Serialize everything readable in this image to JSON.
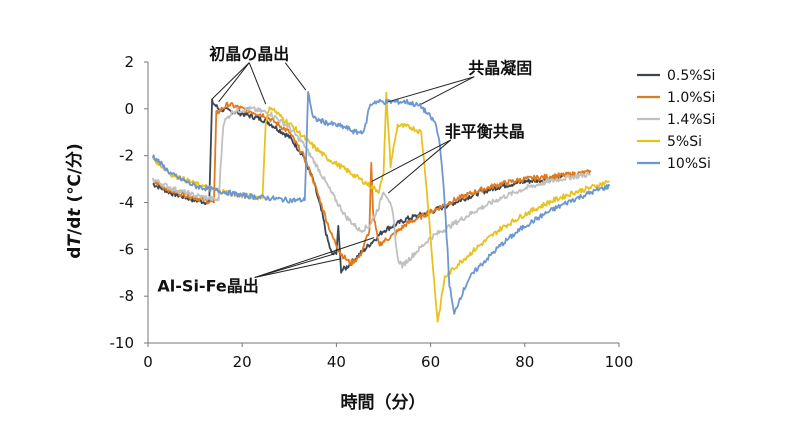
{
  "chart_data": {
    "type": "line",
    "title": "",
    "xlabel": "時間（分）",
    "ylabel": "dT/dt (℃/分)",
    "ylabel_parts": [
      "d",
      "T",
      "/d",
      "t",
      " (℃/分)"
    ],
    "xlim": [
      0,
      100
    ],
    "ylim": [
      -10,
      2
    ],
    "xticks": [
      0,
      20,
      40,
      60,
      80,
      100
    ],
    "yticks": [
      -10,
      -8,
      -6,
      -4,
      -2,
      0,
      2
    ],
    "grid": false,
    "legend_position": "right",
    "annotations": [
      {
        "text": "初晶の晶出",
        "x": 13,
        "y": 2.1,
        "targets": [
          [
            13.5,
            0.4
          ],
          [
            15.0,
            0.3
          ],
          [
            25.0,
            0.2
          ],
          [
            33.5,
            0.8
          ]
        ]
      },
      {
        "text": "共晶凝固",
        "x": 68,
        "y": 1.5,
        "targets": [
          [
            51,
            0.3
          ],
          [
            58,
            0.2
          ]
        ]
      },
      {
        "text": "非平衡共晶",
        "x": 63,
        "y": -1.2,
        "targets": [
          [
            47.5,
            -3.1
          ],
          [
            51,
            -3.6
          ]
        ]
      },
      {
        "text": "Al-Si-Fe晶出",
        "x": 2,
        "y": -7.8,
        "targets": [
          [
            39.5,
            -6.2
          ],
          [
            41.0,
            -6.4
          ],
          [
            48.0,
            -5.5
          ]
        ]
      }
    ],
    "series": [
      {
        "name": "0.5%Si",
        "color": "#3a4555",
        "points": [
          [
            1,
            -3.2
          ],
          [
            5,
            -3.6
          ],
          [
            10,
            -3.9
          ],
          [
            13,
            -4.0
          ],
          [
            13.6,
            0.3
          ],
          [
            15,
            0.0
          ],
          [
            20,
            -0.2
          ],
          [
            25,
            -0.5
          ],
          [
            30,
            -1.2
          ],
          [
            33,
            -2.0
          ],
          [
            35,
            -3.0
          ],
          [
            37,
            -4.5
          ],
          [
            38,
            -5.5
          ],
          [
            39,
            -6.2
          ],
          [
            40,
            -6.2
          ],
          [
            40.4,
            -5.0
          ],
          [
            41,
            -6.9
          ],
          [
            42,
            -6.8
          ],
          [
            44,
            -6.4
          ],
          [
            47,
            -5.8
          ],
          [
            50,
            -5.2
          ],
          [
            55,
            -4.7
          ],
          [
            60,
            -4.4
          ],
          [
            65,
            -4.0
          ],
          [
            70,
            -3.6
          ],
          [
            75,
            -3.3
          ],
          [
            80,
            -3.1
          ],
          [
            85,
            -3.0
          ],
          [
            88,
            -2.9
          ]
        ]
      },
      {
        "name": "1.0%Si",
        "color": "#e07a1c",
        "points": [
          [
            1,
            -3.1
          ],
          [
            5,
            -3.5
          ],
          [
            10,
            -3.8
          ],
          [
            14,
            -4.0
          ],
          [
            14.5,
            -0.2
          ],
          [
            17,
            0.2
          ],
          [
            20,
            0.0
          ],
          [
            25,
            -0.3
          ],
          [
            30,
            -1.0
          ],
          [
            33,
            -2.0
          ],
          [
            35,
            -3.0
          ],
          [
            37,
            -4.2
          ],
          [
            39,
            -5.4
          ],
          [
            41,
            -6.2
          ],
          [
            43,
            -6.6
          ],
          [
            45,
            -6.3
          ],
          [
            47,
            -5.2
          ],
          [
            47.4,
            -2.3
          ],
          [
            47.8,
            -4.5
          ],
          [
            49,
            -5.8
          ],
          [
            52,
            -5.4
          ],
          [
            55,
            -4.9
          ],
          [
            60,
            -4.4
          ],
          [
            65,
            -3.9
          ],
          [
            70,
            -3.5
          ],
          [
            75,
            -3.2
          ],
          [
            80,
            -3.0
          ],
          [
            85,
            -2.9
          ],
          [
            90,
            -2.8
          ],
          [
            94,
            -2.7
          ]
        ]
      },
      {
        "name": "1.4%Si",
        "color": "#c0c0c0",
        "points": [
          [
            1,
            -3.0
          ],
          [
            5,
            -3.4
          ],
          [
            10,
            -3.7
          ],
          [
            15,
            -3.9
          ],
          [
            16,
            -0.6
          ],
          [
            18,
            -0.1
          ],
          [
            22,
            0.0
          ],
          [
            26,
            -0.2
          ],
          [
            30,
            -0.8
          ],
          [
            33,
            -1.5
          ],
          [
            36,
            -2.5
          ],
          [
            39,
            -3.6
          ],
          [
            42,
            -4.6
          ],
          [
            45,
            -5.2
          ],
          [
            47,
            -5.0
          ],
          [
            49,
            -4.2
          ],
          [
            50,
            -3.5
          ],
          [
            51,
            -3.8
          ],
          [
            52,
            -4.5
          ],
          [
            53,
            -6.4
          ],
          [
            54,
            -6.7
          ],
          [
            56,
            -6.3
          ],
          [
            60,
            -5.5
          ],
          [
            65,
            -4.9
          ],
          [
            70,
            -4.3
          ],
          [
            75,
            -3.8
          ],
          [
            80,
            -3.4
          ],
          [
            85,
            -3.1
          ],
          [
            90,
            -2.9
          ],
          [
            94,
            -2.8
          ]
        ]
      },
      {
        "name": "5%Si",
        "color": "#e8c21e",
        "points": [
          [
            1,
            -2.1
          ],
          [
            5,
            -2.8
          ],
          [
            10,
            -3.2
          ],
          [
            15,
            -3.5
          ],
          [
            20,
            -3.7
          ],
          [
            24.3,
            -3.8
          ],
          [
            25,
            -0.5
          ],
          [
            26,
            0.1
          ],
          [
            28,
            -0.3
          ],
          [
            31,
            -0.8
          ],
          [
            34,
            -1.4
          ],
          [
            38,
            -2.1
          ],
          [
            42,
            -2.6
          ],
          [
            45,
            -3.0
          ],
          [
            48,
            -3.4
          ],
          [
            49,
            -3.5
          ],
          [
            50,
            -2.8
          ],
          [
            50.6,
            0.6
          ],
          [
            51.5,
            -2.4
          ],
          [
            53,
            -0.7
          ],
          [
            56,
            -0.8
          ],
          [
            58,
            -1.0
          ],
          [
            59,
            -3.0
          ],
          [
            60,
            -5.5
          ],
          [
            61,
            -8.0
          ],
          [
            61.5,
            -9.1
          ],
          [
            62,
            -8.5
          ],
          [
            63,
            -7.2
          ],
          [
            66,
            -6.6
          ],
          [
            70,
            -5.9
          ],
          [
            75,
            -5.1
          ],
          [
            80,
            -4.5
          ],
          [
            85,
            -4.0
          ],
          [
            90,
            -3.6
          ],
          [
            95,
            -3.3
          ],
          [
            98,
            -3.1
          ]
        ]
      },
      {
        "name": "10%Si",
        "color": "#6f97cf",
        "points": [
          [
            1,
            -2.0
          ],
          [
            5,
            -2.8
          ],
          [
            10,
            -3.3
          ],
          [
            15,
            -3.5
          ],
          [
            20,
            -3.7
          ],
          [
            25,
            -3.8
          ],
          [
            30,
            -3.9
          ],
          [
            33.3,
            -3.9
          ],
          [
            34,
            0.8
          ],
          [
            35,
            -0.4
          ],
          [
            38,
            -0.6
          ],
          [
            40,
            -0.7
          ],
          [
            42,
            -0.8
          ],
          [
            44,
            -1.0
          ],
          [
            45,
            -1.0
          ],
          [
            46,
            -0.9
          ],
          [
            47,
            0.1
          ],
          [
            48,
            0.3
          ],
          [
            50,
            0.3
          ],
          [
            55,
            0.3
          ],
          [
            58,
            0.1
          ],
          [
            61,
            -0.6
          ],
          [
            62,
            -1.5
          ],
          [
            63,
            -4.0
          ],
          [
            64,
            -7.5
          ],
          [
            65,
            -8.8
          ],
          [
            66,
            -8.2
          ],
          [
            68,
            -7.3
          ],
          [
            70,
            -6.8
          ],
          [
            75,
            -5.8
          ],
          [
            80,
            -5.0
          ],
          [
            85,
            -4.4
          ],
          [
            90,
            -3.9
          ],
          [
            95,
            -3.5
          ],
          [
            98,
            -3.3
          ]
        ]
      }
    ]
  }
}
